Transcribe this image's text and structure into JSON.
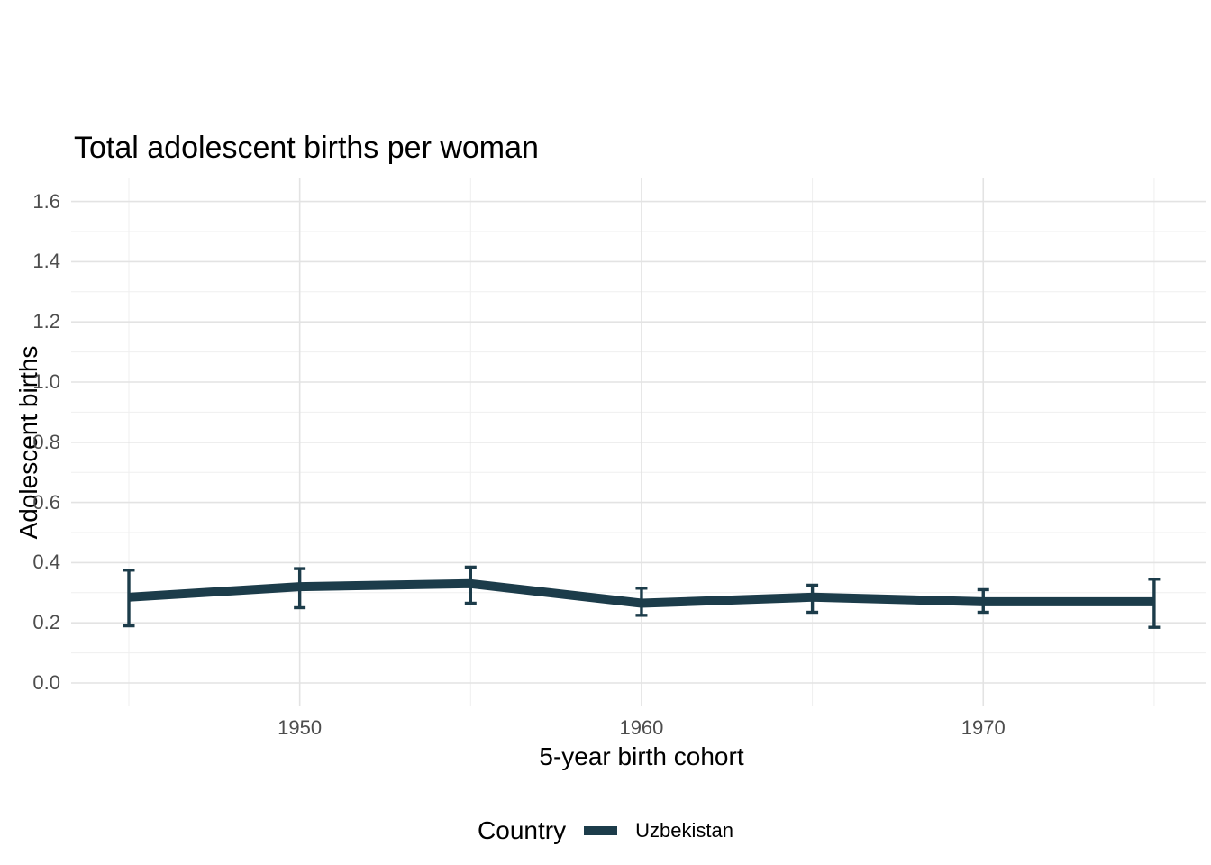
{
  "title": "Total adolescent births per woman",
  "axes": {
    "x": {
      "label": "5-year birth cohort",
      "ticks": [
        "1950",
        "1960",
        "1970"
      ]
    },
    "y": {
      "label": "Adolescent births",
      "ticks": [
        "0.0",
        "0.2",
        "0.4",
        "0.6",
        "0.8",
        "1.0",
        "1.2",
        "1.4",
        "1.6"
      ]
    }
  },
  "legend": {
    "title": "Country",
    "items": [
      {
        "label": "Uzbekistan",
        "color": "#1c3c4a"
      }
    ]
  },
  "colors": {
    "series": "#1c3c4a",
    "grid_major": "#e3e3e3",
    "grid_minor": "#efefef",
    "axis_text": "#4d4d4d",
    "title_text": "#000000",
    "background": "#ffffff"
  },
  "chart_data": {
    "type": "line",
    "title": "Total adolescent births per woman",
    "xlabel": "5-year birth cohort",
    "ylabel": "Adolescent births",
    "x": [
      1945,
      1950,
      1955,
      1960,
      1965,
      1970,
      1975
    ],
    "x_major_ticks": [
      1950,
      1960,
      1970
    ],
    "x_minor_gridlines": [
      1945,
      1955,
      1965,
      1975
    ],
    "ylim": [
      0,
      1.6
    ],
    "y_major_step": 0.2,
    "y_minor_step": 0.1,
    "grid": true,
    "legend_title": "Country",
    "legend_position": "bottom",
    "error_bars": true,
    "series": [
      {
        "name": "Uzbekistan",
        "color": "#1c3c4a",
        "values": [
          0.285,
          0.32,
          0.33,
          0.265,
          0.285,
          0.27,
          0.27
        ],
        "ci_low": [
          0.19,
          0.25,
          0.265,
          0.225,
          0.235,
          0.235,
          0.185
        ],
        "ci_high": [
          0.375,
          0.38,
          0.385,
          0.315,
          0.325,
          0.31,
          0.345
        ]
      }
    ]
  }
}
